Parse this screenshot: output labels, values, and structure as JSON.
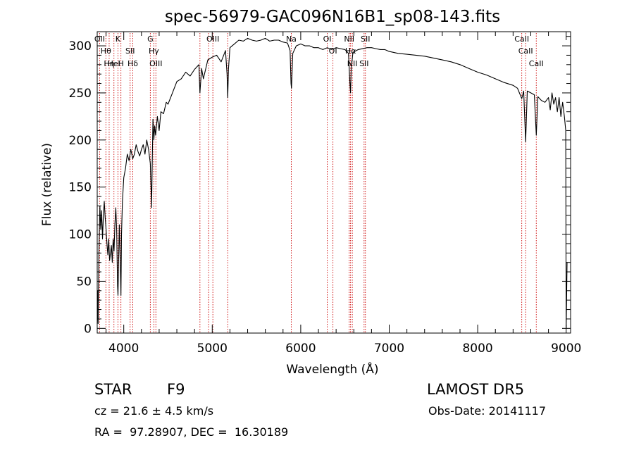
{
  "chart_data": {
    "type": "line",
    "title": "spec-56979-GAC096N16B1_sp08-143.fits",
    "xlabel": "Wavelength (Å)",
    "ylabel": "Flux (relative)",
    "xlim": [
      3700,
      9050
    ],
    "ylim": [
      -5,
      315
    ],
    "x_ticks": [
      4000,
      5000,
      6000,
      7000,
      8000,
      9000
    ],
    "x_tick_labels": [
      "4000",
      "5000",
      "6000",
      "7000",
      "8000",
      "9000"
    ],
    "y_ticks": [
      0,
      50,
      100,
      150,
      200,
      250,
      300
    ],
    "y_tick_labels": [
      "0",
      "50",
      "100",
      "150",
      "200",
      "250",
      "300"
    ],
    "grid": false,
    "series": [
      {
        "color": "#000000",
        "points": [
          [
            3700,
            5
          ],
          [
            3705,
            40
          ],
          [
            3710,
            5
          ],
          [
            3720,
            85
          ],
          [
            3730,
            130
          ],
          [
            3740,
            105
          ],
          [
            3750,
            125
          ],
          [
            3760,
            95
          ],
          [
            3770,
            120
          ],
          [
            3780,
            135
          ],
          [
            3790,
            118
          ],
          [
            3800,
            105
          ],
          [
            3810,
            90
          ],
          [
            3820,
            78
          ],
          [
            3830,
            95
          ],
          [
            3840,
            72
          ],
          [
            3850,
            80
          ],
          [
            3860,
            88
          ],
          [
            3870,
            70
          ],
          [
            3880,
            95
          ],
          [
            3890,
            82
          ],
          [
            3900,
            110
          ],
          [
            3910,
            128
          ],
          [
            3920,
            105
          ],
          [
            3930,
            45
          ],
          [
            3935,
            35
          ],
          [
            3940,
            60
          ],
          [
            3950,
            110
          ],
          [
            3960,
            70
          ],
          [
            3968,
            35
          ],
          [
            3975,
            100
          ],
          [
            3985,
            135
          ],
          [
            4000,
            160
          ],
          [
            4020,
            170
          ],
          [
            4040,
            185
          ],
          [
            4060,
            178
          ],
          [
            4080,
            190
          ],
          [
            4101,
            180
          ],
          [
            4120,
            185
          ],
          [
            4140,
            195
          ],
          [
            4160,
            188
          ],
          [
            4180,
            183
          ],
          [
            4200,
            190
          ],
          [
            4220,
            195
          ],
          [
            4240,
            185
          ],
          [
            4260,
            200
          ],
          [
            4280,
            190
          ],
          [
            4300,
            175
          ],
          [
            4310,
            145
          ],
          [
            4315,
            128
          ],
          [
            4320,
            165
          ],
          [
            4330,
            222
          ],
          [
            4340,
            200
          ],
          [
            4350,
            215
          ],
          [
            4360,
            205
          ],
          [
            4380,
            225
          ],
          [
            4400,
            210
          ],
          [
            4420,
            230
          ],
          [
            4450,
            228
          ],
          [
            4480,
            240
          ],
          [
            4500,
            238
          ],
          [
            4550,
            250
          ],
          [
            4600,
            262
          ],
          [
            4650,
            265
          ],
          [
            4700,
            272
          ],
          [
            4750,
            268
          ],
          [
            4800,
            275
          ],
          [
            4850,
            280
          ],
          [
            4861,
            250
          ],
          [
            4880,
            276
          ],
          [
            4900,
            265
          ],
          [
            4950,
            285
          ],
          [
            5000,
            288
          ],
          [
            5050,
            290
          ],
          [
            5100,
            283
          ],
          [
            5150,
            295
          ],
          [
            5167,
            270
          ],
          [
            5175,
            245
          ],
          [
            5183,
            275
          ],
          [
            5200,
            298
          ],
          [
            5250,
            302
          ],
          [
            5300,
            306
          ],
          [
            5350,
            305
          ],
          [
            5400,
            308
          ],
          [
            5450,
            306
          ],
          [
            5500,
            305
          ],
          [
            5550,
            306
          ],
          [
            5600,
            308
          ],
          [
            5650,
            305
          ],
          [
            5700,
            306
          ],
          [
            5750,
            306
          ],
          [
            5800,
            304
          ],
          [
            5850,
            303
          ],
          [
            5880,
            295
          ],
          [
            5890,
            260
          ],
          [
            5896,
            255
          ],
          [
            5910,
            292
          ],
          [
            5950,
            300
          ],
          [
            6000,
            302
          ],
          [
            6050,
            300
          ],
          [
            6100,
            300
          ],
          [
            6150,
            298
          ],
          [
            6200,
            298
          ],
          [
            6250,
            296
          ],
          [
            6300,
            298
          ],
          [
            6350,
            296
          ],
          [
            6400,
            298
          ],
          [
            6450,
            297
          ],
          [
            6500,
            296
          ],
          [
            6540,
            292
          ],
          [
            6555,
            262
          ],
          [
            6563,
            250
          ],
          [
            6570,
            275
          ],
          [
            6590,
            293
          ],
          [
            6650,
            296
          ],
          [
            6700,
            297
          ],
          [
            6750,
            298
          ],
          [
            6800,
            298
          ],
          [
            6850,
            297
          ],
          [
            6900,
            296
          ],
          [
            6950,
            296
          ],
          [
            7000,
            294
          ],
          [
            7100,
            292
          ],
          [
            7200,
            291
          ],
          [
            7300,
            290
          ],
          [
            7400,
            289
          ],
          [
            7500,
            287
          ],
          [
            7600,
            285
          ],
          [
            7700,
            283
          ],
          [
            7800,
            280
          ],
          [
            7900,
            276
          ],
          [
            8000,
            272
          ],
          [
            8100,
            269
          ],
          [
            8200,
            265
          ],
          [
            8300,
            261
          ],
          [
            8400,
            258
          ],
          [
            8450,
            255
          ],
          [
            8498,
            244
          ],
          [
            8520,
            252
          ],
          [
            8542,
            198
          ],
          [
            8560,
            252
          ],
          [
            8600,
            250
          ],
          [
            8640,
            248
          ],
          [
            8662,
            205
          ],
          [
            8680,
            246
          ],
          [
            8720,
            242
          ],
          [
            8760,
            240
          ],
          [
            8800,
            245
          ],
          [
            8820,
            232
          ],
          [
            8840,
            250
          ],
          [
            8860,
            238
          ],
          [
            8880,
            245
          ],
          [
            8900,
            230
          ],
          [
            8920,
            245
          ],
          [
            8940,
            225
          ],
          [
            8960,
            240
          ],
          [
            8980,
            225
          ],
          [
            8995,
            210
          ],
          [
            9000,
            0
          ],
          [
            9010,
            70
          ]
        ]
      }
    ],
    "line_markers": [
      {
        "wave": 3727,
        "label": "OII"
      },
      {
        "wave": 3798,
        "label": "Hθ"
      },
      {
        "wave": 3835,
        "label": "Hη"
      },
      {
        "wave": 3889,
        "label": "HeI"
      },
      {
        "wave": 3934,
        "label": "K"
      },
      {
        "wave": 3968,
        "label": "H"
      },
      {
        "wave": 4072,
        "label": "SII"
      },
      {
        "wave": 4102,
        "label": "Hδ"
      },
      {
        "wave": 4300,
        "label": "G"
      },
      {
        "wave": 4340,
        "label": "Hγ"
      },
      {
        "wave": 4363,
        "label": "OIII"
      },
      {
        "wave": 4861,
        "label": ""
      },
      {
        "wave": 4959,
        "label": ""
      },
      {
        "wave": 5007,
        "label": "OIII"
      },
      {
        "wave": 5175,
        "label": ""
      },
      {
        "wave": 5893,
        "label": "Na"
      },
      {
        "wave": 6300,
        "label": "OI"
      },
      {
        "wave": 6364,
        "label": "OI"
      },
      {
        "wave": 6548,
        "label": "NII"
      },
      {
        "wave": 6563,
        "label": "Hα"
      },
      {
        "wave": 6583,
        "label": "NII"
      },
      {
        "wave": 6716,
        "label": "SII"
      },
      {
        "wave": 6731,
        "label": "SII"
      },
      {
        "wave": 8498,
        "label": "CaII"
      },
      {
        "wave": 8542,
        "label": "CaII"
      },
      {
        "wave": 8662,
        "label": "CaII"
      }
    ]
  },
  "info": {
    "object_class": "STAR",
    "subclass": "F9",
    "survey": "LAMOST DR5",
    "redshift_line": "cz = 21.6 ± 4.5 km/s",
    "obs_date_line": "Obs-Date: 20141117",
    "coords_line": "RA =  97.28907, DEC =  16.30189"
  },
  "colors": {
    "spectrum": "#000000",
    "marker_line": "#cc0000",
    "axes": "#000000"
  }
}
